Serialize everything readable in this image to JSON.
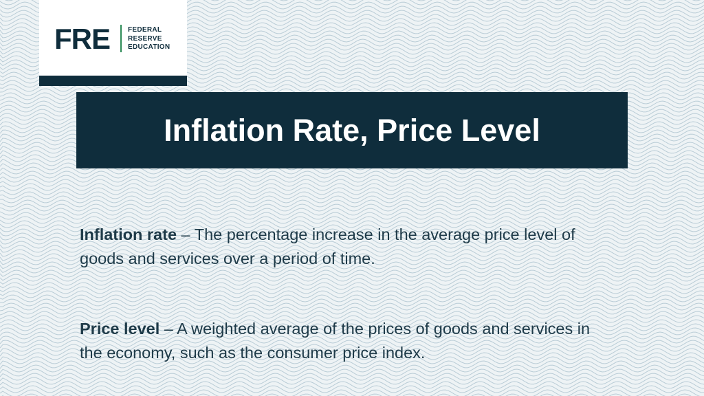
{
  "logo": {
    "mark": "FRE",
    "words": [
      "FEDERAL",
      "RESERVE",
      "EDUCATION"
    ]
  },
  "title": "Inflation Rate, Price Level",
  "definitions": [
    {
      "term": "Inflation rate",
      "separator": " – ",
      "text": "The percentage increase in the average price level of goods and services over a period of time."
    },
    {
      "term": "Price level",
      "separator": " – ",
      "text": "A weighted average of the prices of goods and services in the economy, such as the consumer price index."
    }
  ],
  "colors": {
    "navy": "#0f2d3c",
    "accent_green": "#2e8b57",
    "background": "#eef3f5",
    "wave_line": "#b9ccd6"
  }
}
